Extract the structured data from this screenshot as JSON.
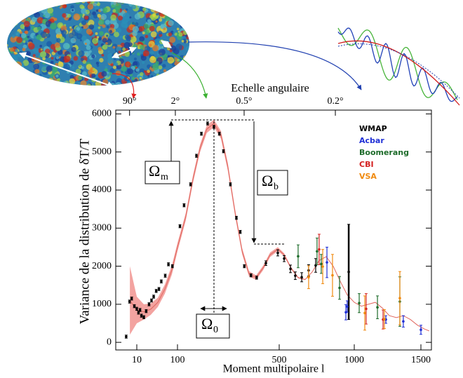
{
  "chart_data": {
    "type": "errorbar",
    "top_label": "Echelle angulaire",
    "top_ticks": [
      {
        "value": 7.3,
        "label": "90°"
      },
      {
        "value": 88.6,
        "label": "2°"
      },
      {
        "value": 287,
        "label": "0.5°"
      },
      {
        "value": 874,
        "label": "0.2°"
      }
    ],
    "y_label": "Variance de la distribution de δT/T",
    "x_label": "Moment multipolaire l",
    "xlim": [
      4,
      1580
    ],
    "xticks": [
      10,
      100,
      500,
      1000,
      1500
    ],
    "ylim": [
      -200,
      6100
    ],
    "yticks": [
      0,
      1000,
      2000,
      3000,
      4000,
      5000,
      6000
    ],
    "model": {
      "color": "#e0675f",
      "band_color": "#f3a3a0",
      "x": [
        7.4,
        10,
        14.9,
        22,
        32.9,
        49,
        72.8,
        100,
        114,
        128,
        143,
        159,
        178,
        199,
        222,
        249,
        278,
        310,
        347,
        387,
        433,
        489,
        533,
        579,
        626,
        673,
        720,
        766,
        813,
        860,
        907,
        953,
        1000,
        1053,
        1105,
        1158,
        1211,
        1263,
        1316,
        1368,
        1421,
        1474,
        1526,
        1563
      ],
      "values": [
        1100,
        850,
        800,
        870,
        1050,
        1400,
        1900,
        2500,
        3300,
        4300,
        5100,
        5600,
        5750,
        5450,
        4600,
        3400,
        2400,
        1800,
        1700,
        1950,
        2300,
        2450,
        2300,
        1950,
        1700,
        1650,
        1850,
        2150,
        2250,
        2000,
        1600,
        1250,
        1050,
        950,
        1000,
        1050,
        900,
        700,
        650,
        700,
        600,
        450,
        350,
        300
      ],
      "band_error": [
        900,
        350,
        200,
        150,
        120,
        120,
        120,
        110,
        100,
        100,
        100,
        100,
        100,
        100,
        100,
        90,
        80,
        70,
        60,
        60,
        60,
        50,
        40,
        30,
        20,
        10,
        0,
        0,
        0,
        0,
        0,
        0,
        0,
        0,
        0,
        0,
        0,
        0,
        0,
        0,
        0,
        0,
        0,
        0
      ]
    },
    "series": [
      {
        "name": "WMAP",
        "color": "#000000",
        "x": [
          6.3,
          7.3,
          8,
          9,
          10,
          11,
          12,
          13,
          14.9,
          17,
          20,
          23,
          26,
          30,
          35,
          40,
          50,
          60,
          75,
          104,
          111,
          123,
          135,
          146,
          161,
          178,
          194,
          207,
          231,
          254,
          270,
          288,
          320,
          350,
          405,
          489,
          533,
          575,
          607,
          650,
          696,
          743,
          963
        ],
        "values": [
          150,
          1070,
          1150,
          950,
          880,
          780,
          850,
          700,
          660,
          820,
          1000,
          1100,
          1200,
          1350,
          1400,
          1600,
          1750,
          2050,
          2000,
          3050,
          3600,
          4150,
          4900,
          5480,
          5750,
          5660,
          5480,
          5020,
          4150,
          3270,
          2900,
          2000,
          1760,
          1700,
          2080,
          2350,
          2200,
          1930,
          1750,
          1710,
          1890,
          2020,
          1850
        ],
        "errors": [
          40,
          40,
          40,
          40,
          40,
          40,
          40,
          40,
          40,
          40,
          40,
          40,
          40,
          40,
          40,
          40,
          40,
          40,
          40,
          40,
          40,
          40,
          40,
          40,
          40,
          40,
          40,
          40,
          40,
          40,
          40,
          40,
          40,
          40,
          60,
          80,
          80,
          100,
          100,
          120,
          150,
          180,
          1250
        ]
      },
      {
        "name": "Acbar",
        "color": "#1f2fd6",
        "x": [
          818,
          944,
          953,
          1237,
          1368,
          1500
        ],
        "values": [
          2100,
          790,
          940,
          600,
          550,
          330
        ],
        "errors": [
          400,
          200,
          150,
          100,
          150,
          120
        ]
      },
      {
        "name": "Boomerang",
        "color": "#1d6b2a",
        "x": [
          626,
          752,
          780,
          902,
          1037,
          1174,
          1342
        ],
        "values": [
          2260,
          2390,
          2060,
          1430,
          1030,
          920,
          1070
        ],
        "errors": [
          300,
          350,
          250,
          300,
          250,
          300,
          650
        ]
      },
      {
        "name": "CBI",
        "color": "#d42020",
        "x": [
          766,
          1089,
          1216
        ],
        "values": [
          2440,
          880,
          600
        ],
        "errors": [
          400,
          400,
          250
        ]
      },
      {
        "name": "VSA",
        "color": "#f08a10",
        "x": [
          696,
          790,
          855,
          1079,
          1226,
          1342
        ],
        "values": [
          1710,
          1990,
          1760,
          770,
          610,
          1160
        ],
        "errors": [
          300,
          450,
          550,
          450,
          250,
          700
        ]
      }
    ],
    "annotations": [
      {
        "text": "Ω",
        "sub": "m"
      },
      {
        "text": "Ω",
        "sub": "b"
      },
      {
        "text": "Ω",
        "sub": "0"
      }
    ]
  }
}
